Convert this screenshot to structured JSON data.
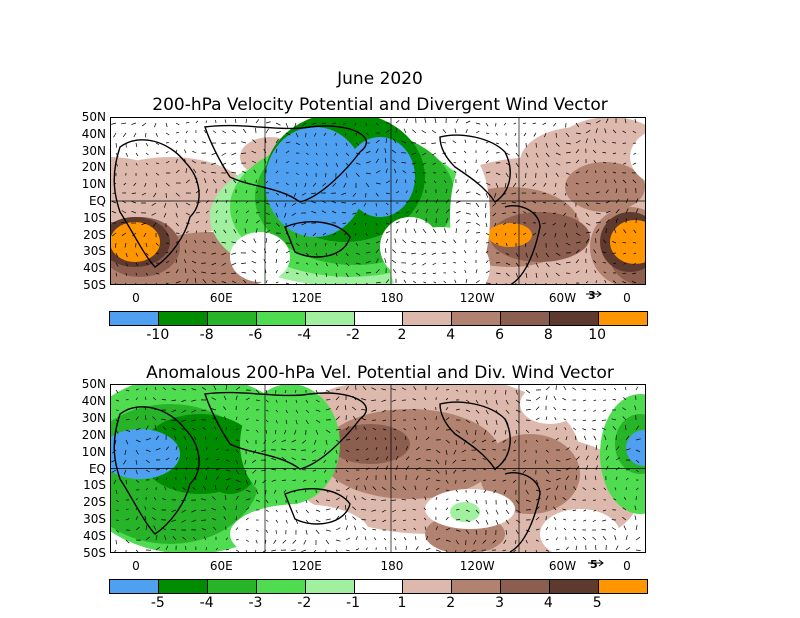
{
  "header": {
    "title": "June 2020"
  },
  "panel1": {
    "title": "200-hPa Velocity Potential and Divergent Wind Vector",
    "vector_ref": "3",
    "colorbar": {
      "colors": [
        "#4fa0f0",
        "#008c00",
        "#28b428",
        "#50dc50",
        "#a0f0a0",
        "#ffffff",
        "#ddb8ac",
        "#b0826f",
        "#8b5e4f",
        "#5e3a2e",
        "#ff9600"
      ],
      "labels": [
        "-10",
        "-8",
        "-6",
        "-4",
        "-2",
        "2",
        "4",
        "6",
        "8",
        "10"
      ]
    }
  },
  "panel2": {
    "title": "Anomalous 200-hPa Vel. Potential and Div. Wind Vector",
    "vector_ref": "5",
    "colorbar": {
      "colors": [
        "#4fa0f0",
        "#008c00",
        "#28b428",
        "#50dc50",
        "#a0f0a0",
        "#ffffff",
        "#ddb8ac",
        "#b0826f",
        "#8b5e4f",
        "#5e3a2e",
        "#ff9600"
      ],
      "labels": [
        "-5",
        "-4",
        "-3",
        "-2",
        "-1",
        "1",
        "2",
        "3",
        "4",
        "5"
      ]
    }
  },
  "axes": {
    "lat_labels": [
      "50N",
      "40N",
      "30N",
      "20N",
      "10N",
      "EQ",
      "10S",
      "20S",
      "30S",
      "40S",
      "50S"
    ],
    "lon_labels": [
      "0",
      "60E",
      "120E",
      "180",
      "120W",
      "60W",
      "0"
    ]
  }
}
